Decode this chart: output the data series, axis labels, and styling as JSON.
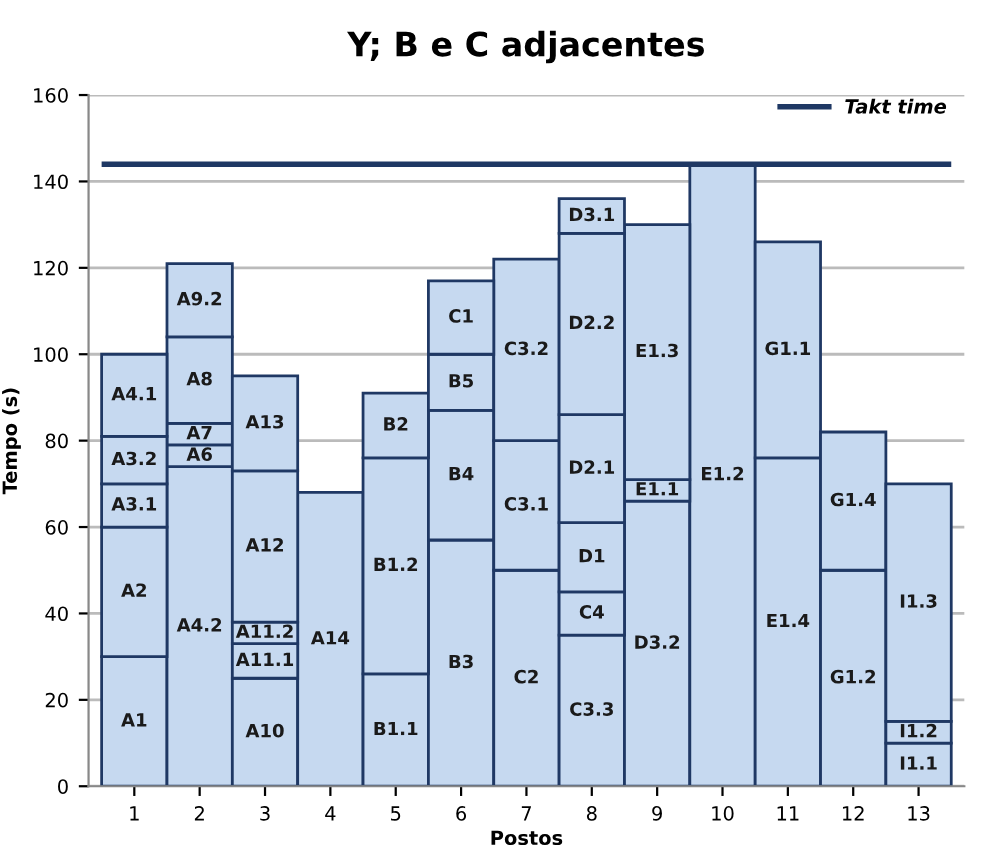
{
  "chart_data": {
    "type": "bar",
    "stacked": true,
    "title": "Y; B e C adjacentes",
    "xlabel": "Postos",
    "ylabel": "Tempo (s)",
    "categories": [
      "1",
      "2",
      "3",
      "4",
      "5",
      "6",
      "7",
      "8",
      "9",
      "10",
      "11",
      "12",
      "13"
    ],
    "series": [
      {
        "color": "#c6d9f0",
        "values": [
          30,
          74,
          25,
          68,
          26,
          57,
          50,
          35,
          66,
          144,
          76,
          50,
          10
        ],
        "value_labels": [
          "A1",
          "A4.2",
          "A10",
          "A14",
          "B1.1",
          "B3",
          "C2",
          "C3.3",
          "D3.2",
          "E1.2",
          "E1.4",
          "G1.2",
          "I1.1"
        ]
      },
      {
        "color": "#c6d9f0",
        "values": [
          30,
          5,
          8,
          null,
          50,
          30,
          30,
          10,
          5,
          null,
          50,
          32,
          5
        ],
        "value_labels": [
          "A2",
          "A6",
          "A11.1",
          null,
          "B1.2",
          "B4",
          "C3.1",
          "C4",
          "E1.1",
          null,
          "G1.1",
          "G1.4",
          "I1.2"
        ]
      },
      {
        "color": "#c6d9f0",
        "values": [
          10,
          5,
          5,
          null,
          15,
          13,
          42,
          16,
          59,
          null,
          null,
          null,
          55
        ],
        "value_labels": [
          "A3.1",
          "A7",
          "A11.2",
          null,
          "B2",
          "B5",
          "C3.2",
          "D1",
          "E1.3",
          null,
          null,
          null,
          "I1.3"
        ]
      },
      {
        "color": "#c6d9f0",
        "values": [
          11,
          20,
          35,
          null,
          null,
          17,
          null,
          25,
          null,
          null,
          null,
          null,
          null
        ],
        "value_labels": [
          "A3.2",
          "A8",
          "A12",
          null,
          null,
          "C1",
          null,
          "D2.1",
          null,
          null,
          null,
          null,
          null
        ]
      },
      {
        "color": "#c6d9f0",
        "values": [
          19,
          17,
          22,
          null,
          null,
          null,
          null,
          42,
          null,
          null,
          null,
          null,
          null
        ],
        "value_labels": [
          "A4.1",
          "A9.2",
          "A13",
          null,
          null,
          null,
          null,
          "D2.2",
          null,
          null,
          null,
          null,
          null
        ]
      },
      {
        "color": "#c6d9f0",
        "values": [
          null,
          null,
          null,
          null,
          null,
          null,
          null,
          8,
          null,
          null,
          null,
          null,
          null
        ],
        "value_labels": [
          null,
          null,
          null,
          null,
          null,
          null,
          null,
          "D3.1",
          null,
          null,
          null,
          null,
          null
        ]
      }
    ],
    "ref_lines": [
      {
        "axis": "y",
        "value": 144,
        "label": "Takt time",
        "color": "#1f3864"
      }
    ],
    "ylim": [
      0,
      160
    ],
    "yticks": [
      0,
      20,
      40,
      60,
      80,
      100,
      120,
      140,
      160
    ],
    "grid": "y",
    "legend": "top right"
  }
}
